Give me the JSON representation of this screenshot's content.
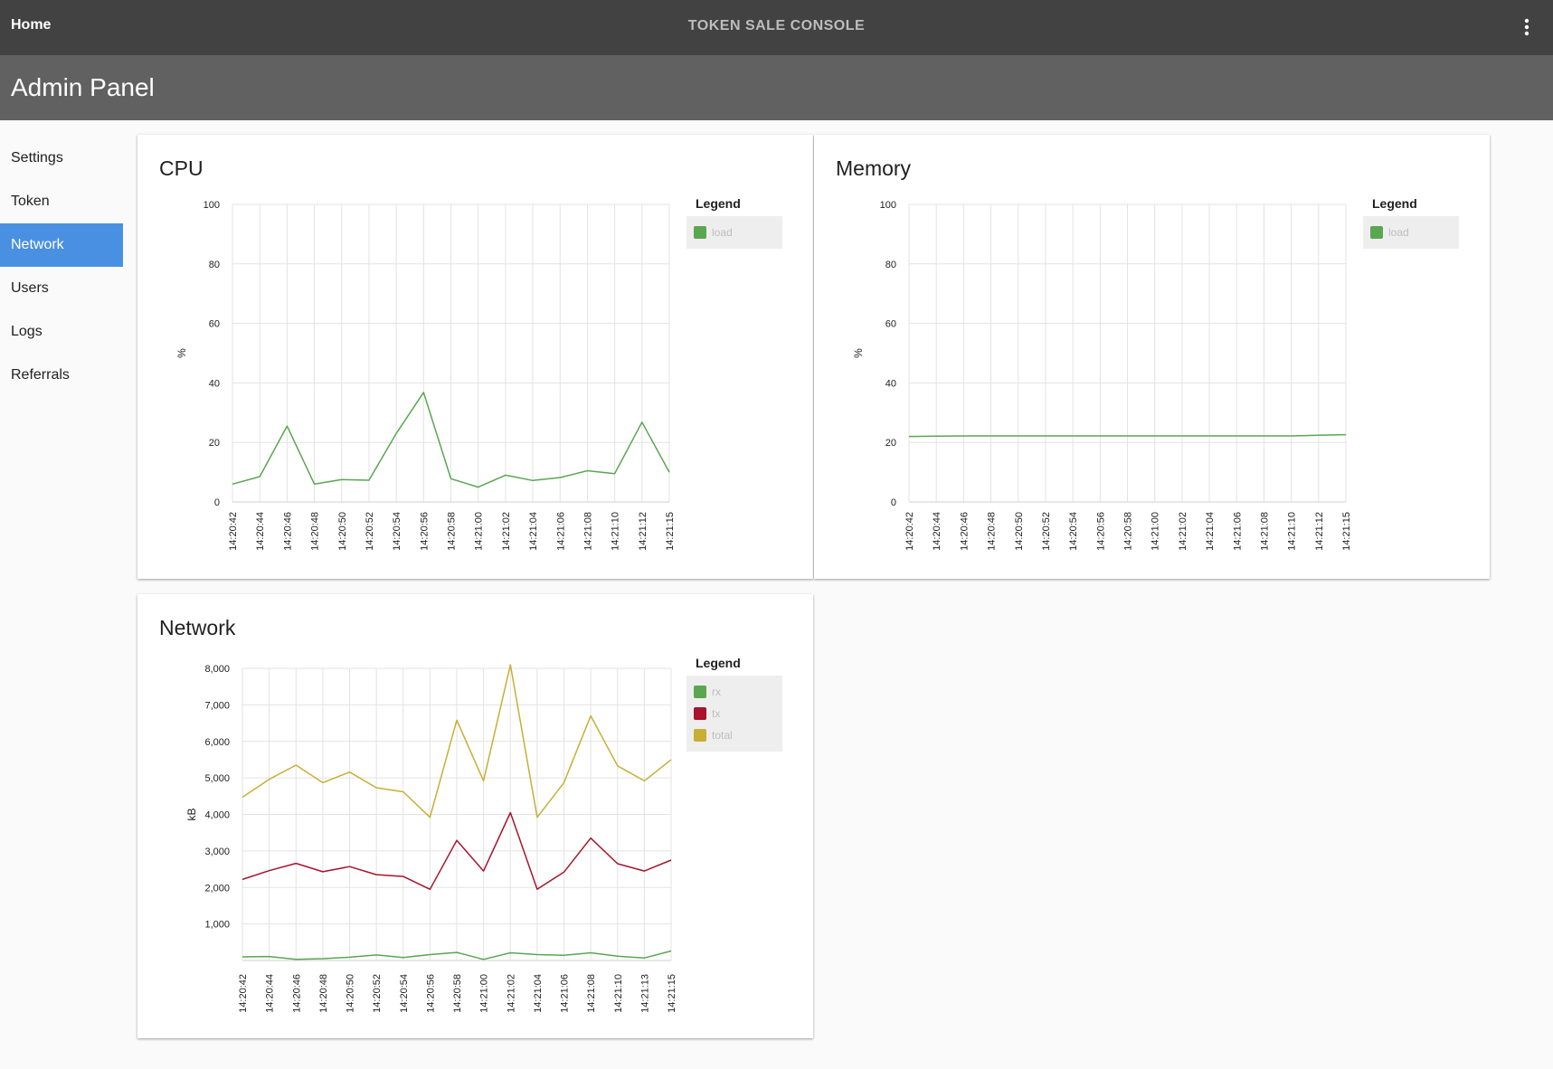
{
  "topbar": {
    "home_label": "Home",
    "title": "TOKEN SALE CONSOLE"
  },
  "header": {
    "title": "Admin Panel"
  },
  "sidebar": {
    "items": [
      {
        "label": "Settings",
        "active": false
      },
      {
        "label": "Token",
        "active": false
      },
      {
        "label": "Network",
        "active": true
      },
      {
        "label": "Users",
        "active": false
      },
      {
        "label": "Logs",
        "active": false
      },
      {
        "label": "Referrals",
        "active": false
      }
    ]
  },
  "colors": {
    "rx": "#5aa651",
    "tx": "#a8142c",
    "total": "#c9ae34",
    "load": "#5aa651",
    "active_nav": "#4a90e2"
  },
  "chart_data": [
    {
      "id": "cpu",
      "type": "line",
      "title": "CPU",
      "ylabel": "%",
      "ylim": [
        0,
        100
      ],
      "yticks": [
        "0",
        "20",
        "40",
        "60",
        "80",
        "100"
      ],
      "ytick_values": [
        0,
        20,
        40,
        60,
        80,
        100
      ],
      "categories": [
        "14:20:42",
        "14:20:44",
        "14:20:46",
        "14:20:48",
        "14:20:50",
        "14:20:52",
        "14:20:54",
        "14:20:56",
        "14:20:58",
        "14:21:00",
        "14:21:02",
        "14:21:04",
        "14:21:06",
        "14:21:08",
        "14:21:10",
        "14:21:12",
        "14:21:15"
      ],
      "legend_title": "Legend",
      "series": [
        {
          "name": "load",
          "color": "#5aa651",
          "values": [
            6,
            8.5,
            25.5,
            6,
            7.5,
            7.3,
            23,
            36.8,
            7.8,
            5,
            9,
            7.2,
            8.2,
            10.5,
            9.5,
            26.8,
            10
          ]
        }
      ],
      "grid": true,
      "legend_position": "right"
    },
    {
      "id": "memory",
      "type": "line",
      "title": "Memory",
      "ylabel": "%",
      "ylim": [
        0,
        100
      ],
      "yticks": [
        "0",
        "20",
        "40",
        "60",
        "80",
        "100"
      ],
      "ytick_values": [
        0,
        20,
        40,
        60,
        80,
        100
      ],
      "categories": [
        "14:20:42",
        "14:20:44",
        "14:20:46",
        "14:20:48",
        "14:20:50",
        "14:20:52",
        "14:20:54",
        "14:20:56",
        "14:20:58",
        "14:21:00",
        "14:21:02",
        "14:21:04",
        "14:21:06",
        "14:21:08",
        "14:21:10",
        "14:21:12",
        "14:21:15"
      ],
      "legend_title": "Legend",
      "series": [
        {
          "name": "load",
          "color": "#5aa651",
          "values": [
            22,
            22.1,
            22.2,
            22.2,
            22.2,
            22.2,
            22.2,
            22.2,
            22.2,
            22.2,
            22.2,
            22.2,
            22.2,
            22.2,
            22.2,
            22.4,
            22.6
          ]
        }
      ],
      "grid": true,
      "legend_position": "right"
    },
    {
      "id": "network",
      "type": "line",
      "title": "Network",
      "ylabel": "kB",
      "ylim": [
        0,
        8000
      ],
      "yticks": [
        "1,000",
        "2,000",
        "3,000",
        "4,000",
        "5,000",
        "6,000",
        "7,000",
        "8,000"
      ],
      "ytick_values": [
        1000,
        2000,
        3000,
        4000,
        5000,
        6000,
        7000,
        8000
      ],
      "categories": [
        "14:20:42",
        "14:20:44",
        "14:20:46",
        "14:20:48",
        "14:20:50",
        "14:20:52",
        "14:20:54",
        "14:20:56",
        "14:20:58",
        "14:21:00",
        "14:21:02",
        "14:21:04",
        "14:21:06",
        "14:21:08",
        "14:21:10",
        "14:21:13",
        "14:21:15"
      ],
      "legend_title": "Legend",
      "series": [
        {
          "name": "rx",
          "color": "#5aa651",
          "values": [
            100,
            110,
            30,
            50,
            90,
            150,
            80,
            160,
            220,
            30,
            210,
            160,
            140,
            210,
            120,
            70,
            260
          ]
        },
        {
          "name": "tx",
          "color": "#a8142c",
          "values": [
            2220,
            2460,
            2660,
            2430,
            2570,
            2350,
            2300,
            1950,
            3290,
            2450,
            4050,
            1950,
            2420,
            3350,
            2650,
            2450,
            2750
          ]
        },
        {
          "name": "total",
          "color": "#c9ae34",
          "values": [
            4470,
            4960,
            5350,
            4870,
            5160,
            4730,
            4620,
            3920,
            6580,
            4920,
            8100,
            3920,
            4870,
            6700,
            5330,
            4920,
            5500
          ]
        }
      ],
      "grid": true,
      "legend_position": "right"
    }
  ]
}
